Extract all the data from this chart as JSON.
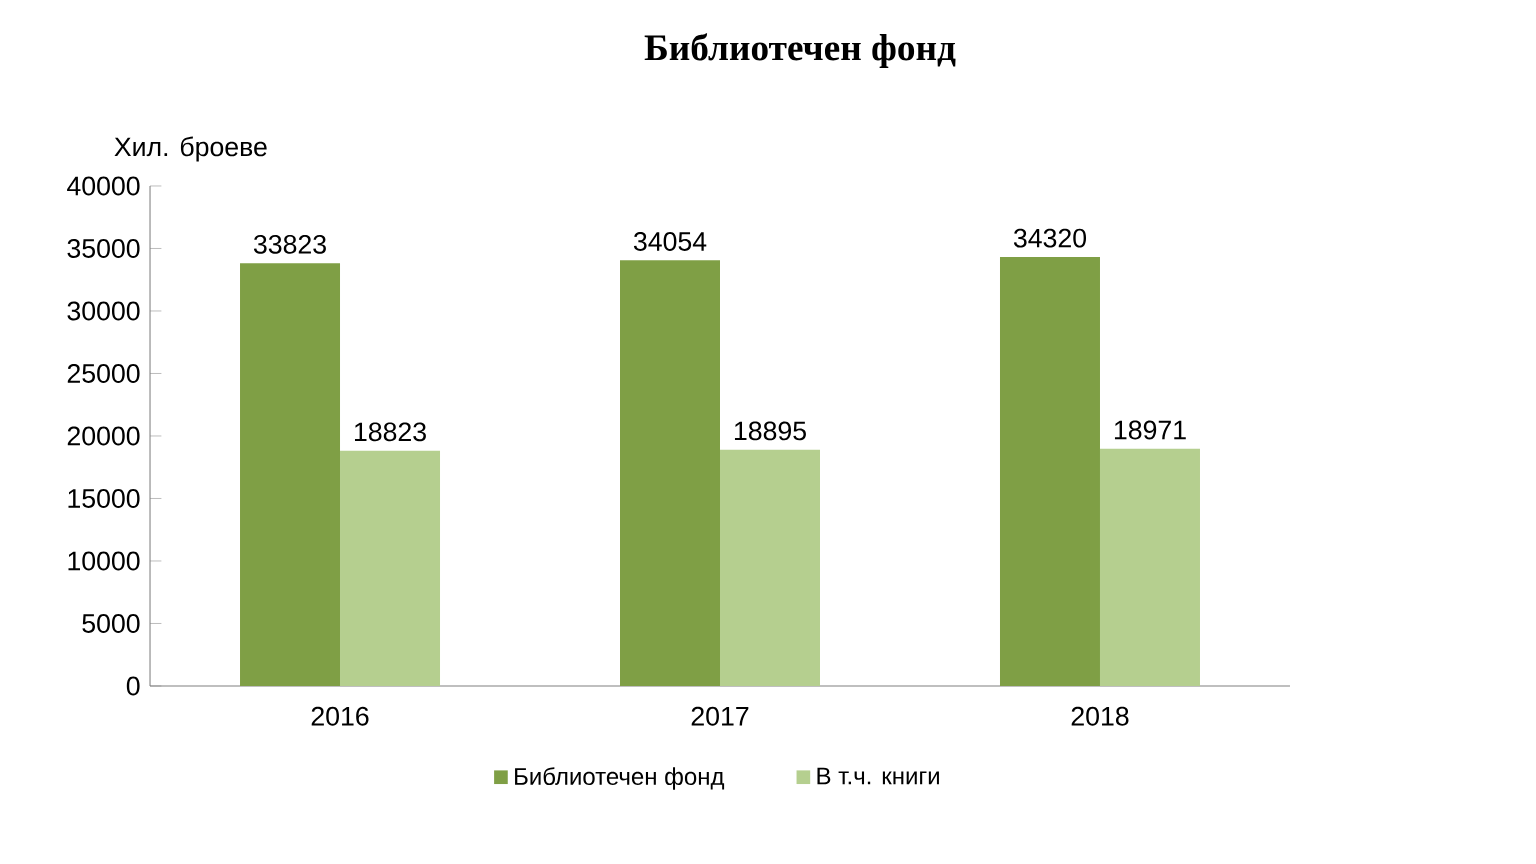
{
  "chart_data": {
    "type": "bar",
    "title": "Библиотечен фонд",
    "ylabel": "Хил. броеве",
    "categories": [
      "2016",
      "2017",
      "2018"
    ],
    "series": [
      {
        "name": "Библиотечен фонд",
        "color": "#7f9f45",
        "values": [
          33823,
          34054,
          34320
        ]
      },
      {
        "name": "В т.ч. книги",
        "color": "#b5cf8f",
        "values": [
          18823,
          18895,
          18971
        ]
      }
    ],
    "ylim": [
      0,
      40000
    ],
    "yticks": [
      0,
      5000,
      10000,
      15000,
      20000,
      25000,
      30000,
      35000,
      40000
    ],
    "data_labels": true,
    "legend": "bottom",
    "grid": false
  }
}
